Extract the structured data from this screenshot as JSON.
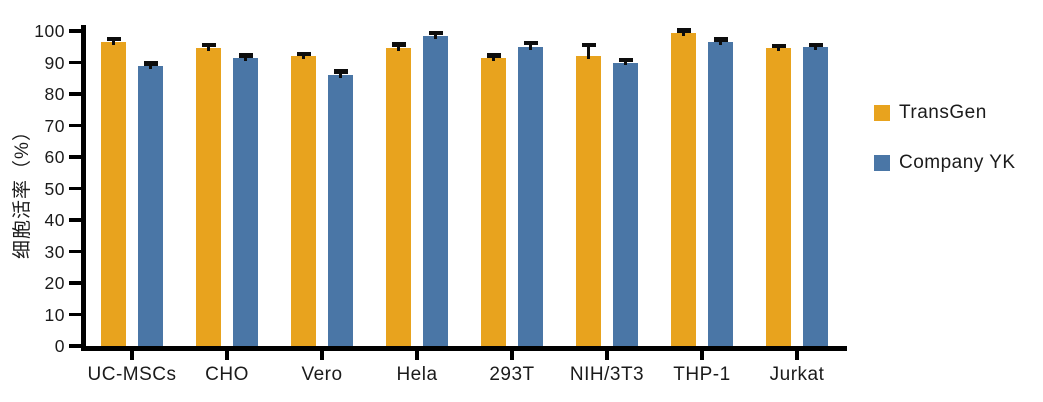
{
  "chart_data": {
    "type": "bar",
    "title": "",
    "xlabel": "",
    "ylabel": "细胞活率（%）",
    "categories": [
      "UC-MSCs",
      "CHO",
      "Vero",
      "Hela",
      "293T",
      "NIH/3T3",
      "THP-1",
      "Jurkat"
    ],
    "series": [
      {
        "name": "TransGen",
        "color": "#E8A31E",
        "values": [
          96.5,
          94.5,
          92,
          94.5,
          91.5,
          92,
          99.5,
          94.5
        ],
        "errors": [
          1.0,
          1.0,
          0.7,
          1.2,
          0.7,
          3.5,
          0.7,
          0.8
        ]
      },
      {
        "name": "Company YK",
        "color": "#4A76A6",
        "values": [
          89,
          91.5,
          86,
          98.5,
          95,
          90,
          96.5,
          95
        ],
        "errors": [
          0.7,
          0.7,
          1.2,
          0.8,
          1.2,
          0.8,
          0.8,
          0.6
        ]
      }
    ],
    "ylim": [
      0,
      100
    ],
    "yticks": [
      0,
      10,
      20,
      30,
      40,
      50,
      60,
      70,
      80,
      90,
      100
    ],
    "grid": false,
    "error_bars": true,
    "error_bar_color": "#0d0d0d",
    "axis_color": "#000000",
    "legend_position": "right"
  }
}
